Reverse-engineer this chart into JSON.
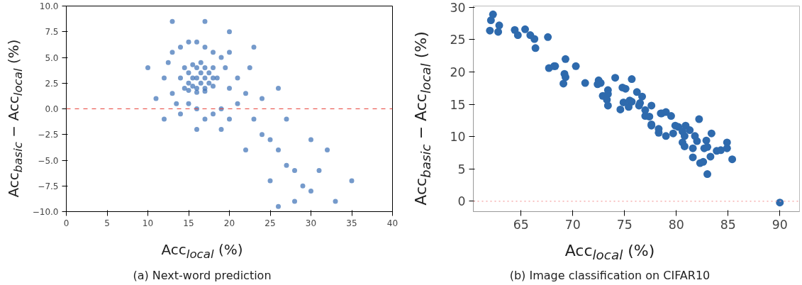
{
  "chart_data": [
    {
      "type": "scatter",
      "xlabel": "Acc$_{local}$ (%)",
      "ylabel": "Acc$_{basic}$ − Acc$_{local}$ (%)",
      "annotations": [
        "(a) Next-word prediction"
      ],
      "xlim": [
        0,
        40
      ],
      "ylim": [
        -10,
        10
      ],
      "xticks": [
        0,
        5,
        10,
        15,
        20,
        25,
        30,
        35,
        40
      ],
      "yticks": [
        {
          "value": -10,
          "label": "−10.0"
        },
        {
          "value": -7.5,
          "label": "−7.5"
        },
        {
          "value": -5,
          "label": "−5.0"
        },
        {
          "value": -2.5,
          "label": "−2.5"
        },
        {
          "value": 0,
          "label": "0.0"
        },
        {
          "value": 2.5,
          "label": "2.5"
        },
        {
          "value": 5,
          "label": "5.0"
        },
        {
          "value": 7.5,
          "label": "7.5"
        },
        {
          "value": 10,
          "label": "10.0"
        }
      ],
      "grid": false,
      "marker": "circle",
      "ref_lines": [
        {
          "axis": "y",
          "value": 0,
          "color": "#e8453c",
          "line_style": "dashed"
        }
      ],
      "series": [
        {
          "color": "#3a6fb5",
          "x": [
            14,
            14.5,
            14.5,
            15,
            15,
            15,
            15.5,
            15.5,
            16,
            16,
            16,
            16.5,
            16.5,
            16.5,
            17,
            17,
            17,
            17.5,
            17.5,
            18,
            18,
            18,
            18.5,
            16,
            15.5,
            17,
            12,
            12.5,
            13,
            13,
            13.5,
            14,
            15,
            16,
            17,
            18,
            19,
            19.5,
            20,
            20,
            21,
            21,
            22,
            22.5,
            19,
            18,
            17,
            16,
            15,
            14,
            16,
            19,
            20,
            23,
            24,
            25,
            26,
            27,
            28,
            29,
            30,
            31,
            33,
            26,
            28,
            32,
            24,
            26,
            23,
            20,
            17,
            13,
            10,
            11,
            12,
            22,
            27,
            30,
            35,
            25
          ],
          "values": [
            3,
            2,
            4,
            2.5,
            3.5,
            1.8,
            3,
            4.3,
            2,
            3,
            4,
            2.5,
            3.5,
            4.5,
            2,
            3,
            4,
            2.5,
            3.5,
            2.2,
            3,
            4,
            3,
            1.6,
            2.2,
            1.7,
            3,
            4.5,
            1.5,
            5.5,
            0.5,
            6,
            6.5,
            6.5,
            6,
            5.5,
            5,
            4,
            2,
            5.5,
            3,
            0.5,
            1.5,
            4,
            0,
            -0.5,
            -1,
            0,
            0.5,
            -0.5,
            -2,
            -2,
            -1,
            -1,
            -2.5,
            -3,
            -4,
            -5.5,
            -6,
            -7.5,
            -8,
            -6,
            -9,
            -9.5,
            -9,
            -4,
            1,
            2,
            6,
            7.5,
            8.5,
            8.5,
            4,
            1,
            -1,
            -4,
            -1,
            -3,
            -7,
            -7
          ]
        }
      ]
    },
    {
      "type": "scatter",
      "xlabel": "Acc$_{local}$ (%)",
      "ylabel": "Acc$_{basic}$ − Acc$_{local}$ (%)",
      "annotations": [
        "(b) Image classification on CIFAR10"
      ],
      "xlim": [
        60.4,
        91.9
      ],
      "ylim": [
        -1.6,
        30.2
      ],
      "xticks": [
        65,
        70,
        75,
        80,
        85,
        90
      ],
      "yticks": [
        0,
        5,
        10,
        15,
        20,
        25,
        30
      ],
      "grid": false,
      "marker": "circle",
      "ref_lines": [
        {
          "axis": "y",
          "value": 0,
          "color": "#f4a0a0",
          "line_style": "dotted"
        }
      ],
      "series": [
        {
          "color": "#2e6aad",
          "x": [
            62.0,
            62.1,
            62.3,
            62.9,
            62.8,
            64.4,
            64.7,
            65.4,
            65.9,
            66.3,
            66.4,
            67.6,
            67.7,
            68.2,
            68.3,
            69.3,
            69.2,
            69.3,
            69.1,
            70.3,
            71.2,
            72.4,
            72.5,
            72.7,
            72.9,
            73.4,
            73.4,
            73.3,
            73.4,
            74.1,
            74.8,
            75.1,
            74.9,
            74.6,
            75.7,
            75.5,
            75.4,
            76.2,
            76.7,
            76.5,
            77.6,
            77.0,
            77.4,
            78.5,
            77.6,
            78.3,
            75.7,
            76.4,
            77.0,
            78.6,
            79.0,
            79.5,
            77.6,
            78.3,
            79.0,
            79.9,
            80.2,
            80.9,
            81.3,
            80.6,
            80.8,
            80.6,
            80.8,
            79.7,
            82.2,
            81.8,
            82.0,
            81.6,
            82.9,
            83.4,
            82.7,
            83.0,
            81.6,
            82.3,
            82.6,
            83.0,
            83.3,
            83.9,
            84.3,
            84.9,
            84.9,
            85.4,
            90.0
          ],
          "values": [
            26.4,
            28.0,
            28.9,
            27.2,
            26.2,
            26.5,
            25.7,
            26.6,
            25.7,
            25.1,
            23.7,
            25.4,
            20.6,
            20.9,
            20.9,
            22.0,
            19.7,
            19.2,
            18.2,
            20.9,
            18.3,
            18.1,
            18.7,
            18.3,
            16.3,
            17.2,
            16.6,
            15.7,
            14.8,
            19.1,
            17.6,
            17.4,
            15.3,
            14.2,
            18.9,
            15.6,
            14.6,
            16.9,
            16.2,
            15.2,
            14.8,
            13.2,
            13.1,
            13.6,
            11.7,
            10.6,
            15.4,
            14.8,
            14.1,
            13.6,
            13.8,
            13.2,
            11.9,
            11.2,
            10.1,
            11.7,
            11.5,
            11.7,
            11.0,
            10.8,
            10.1,
            9.1,
            8.5,
            10.5,
            12.7,
            10.1,
            9.3,
            8.2,
            9.4,
            10.5,
            8.2,
            8.4,
            6.8,
            5.9,
            6.1,
            4.2,
            6.9,
            7.8,
            7.9,
            9.1,
            8.2,
            6.5,
            -0.2
          ]
        }
      ]
    }
  ]
}
